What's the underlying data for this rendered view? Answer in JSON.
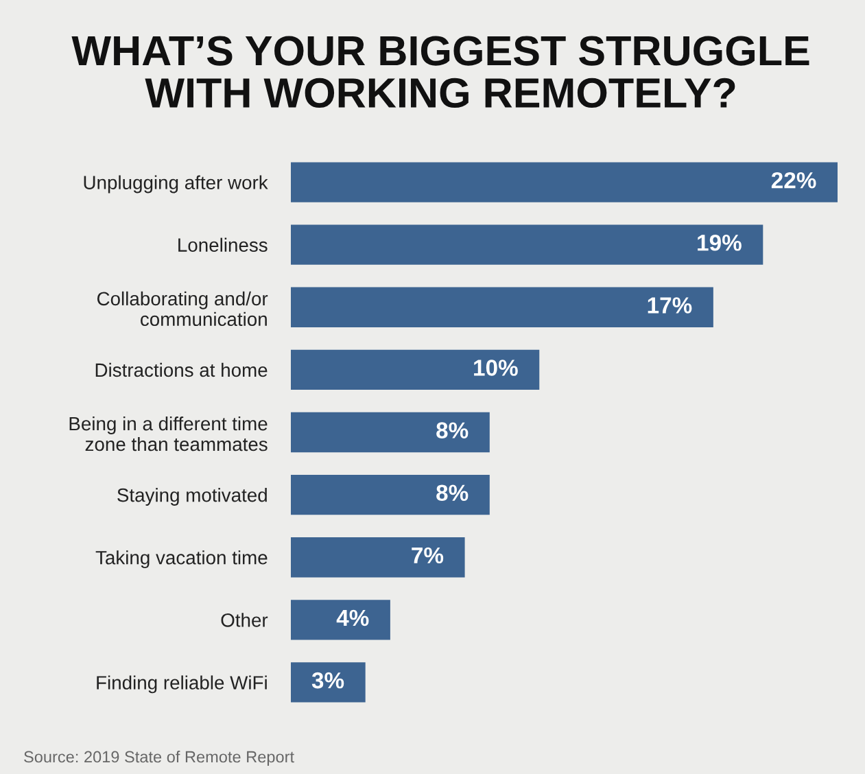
{
  "chart_data": {
    "type": "bar",
    "orientation": "horizontal",
    "title": "WHAT’S YOUR BIGGEST STRUGGLE\nWITH WORKING REMOTELY?",
    "categories": [
      "Unplugging after work",
      "Loneliness",
      "Collaborating and/or\ncommunication",
      "Distractions at home",
      "Being in a different time\nzone than teammates",
      "Staying motivated",
      "Taking vacation time",
      "Other",
      "Finding reliable WiFi"
    ],
    "values": [
      22,
      19,
      17,
      10,
      8,
      8,
      7,
      4,
      3
    ],
    "value_labels": [
      "22%",
      "19%",
      "17%",
      "10%",
      "8%",
      "8%",
      "7%",
      "4%",
      "3%"
    ],
    "color": "#3d6491",
    "annotations": [
      "Source: 2019 State of Remote Report"
    ]
  }
}
